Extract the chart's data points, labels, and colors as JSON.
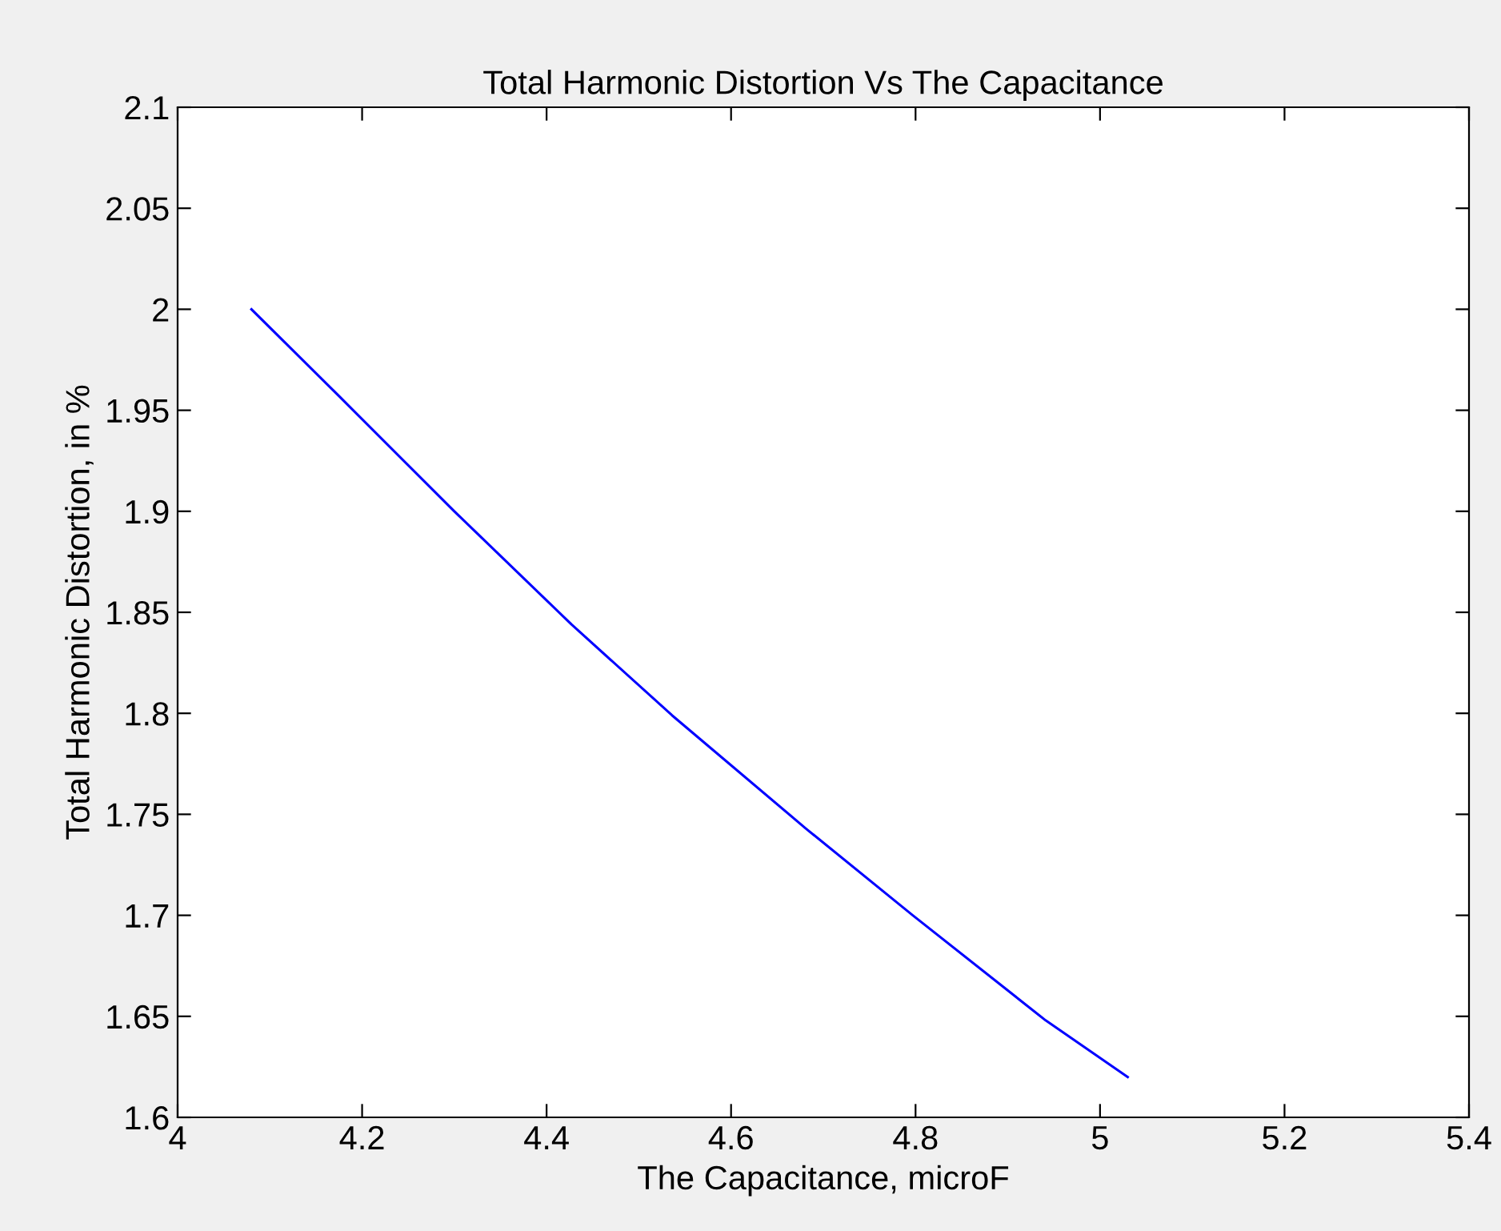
{
  "chart_data": {
    "type": "line",
    "title": "Total Harmonic Distortion Vs The Capacitance",
    "xlabel": "The Capacitance, microF",
    "ylabel": "Total Harmonic Distortion, in %",
    "series": [
      {
        "color": "#0000ff",
        "x": [
          4.08,
          4.175,
          4.3,
          4.427,
          4.536,
          4.681,
          4.797,
          4.941,
          5.03
        ],
        "values": [
          2.0,
          1.957,
          1.9,
          1.844,
          1.799,
          1.743,
          1.7,
          1.648,
          1.62
        ]
      }
    ],
    "xlim": [
      4,
      5.4
    ],
    "xticks": [
      4,
      4.2,
      4.4,
      4.6,
      4.8,
      5,
      5.2,
      5.4
    ],
    "ylim": [
      1.6,
      2.1
    ],
    "yticks": [
      1.6,
      1.65,
      1.7,
      1.75,
      1.8,
      1.85,
      1.9,
      1.95,
      2,
      2.05,
      2.1
    ],
    "grid": false,
    "marker": "none",
    "line_style": "solid"
  }
}
